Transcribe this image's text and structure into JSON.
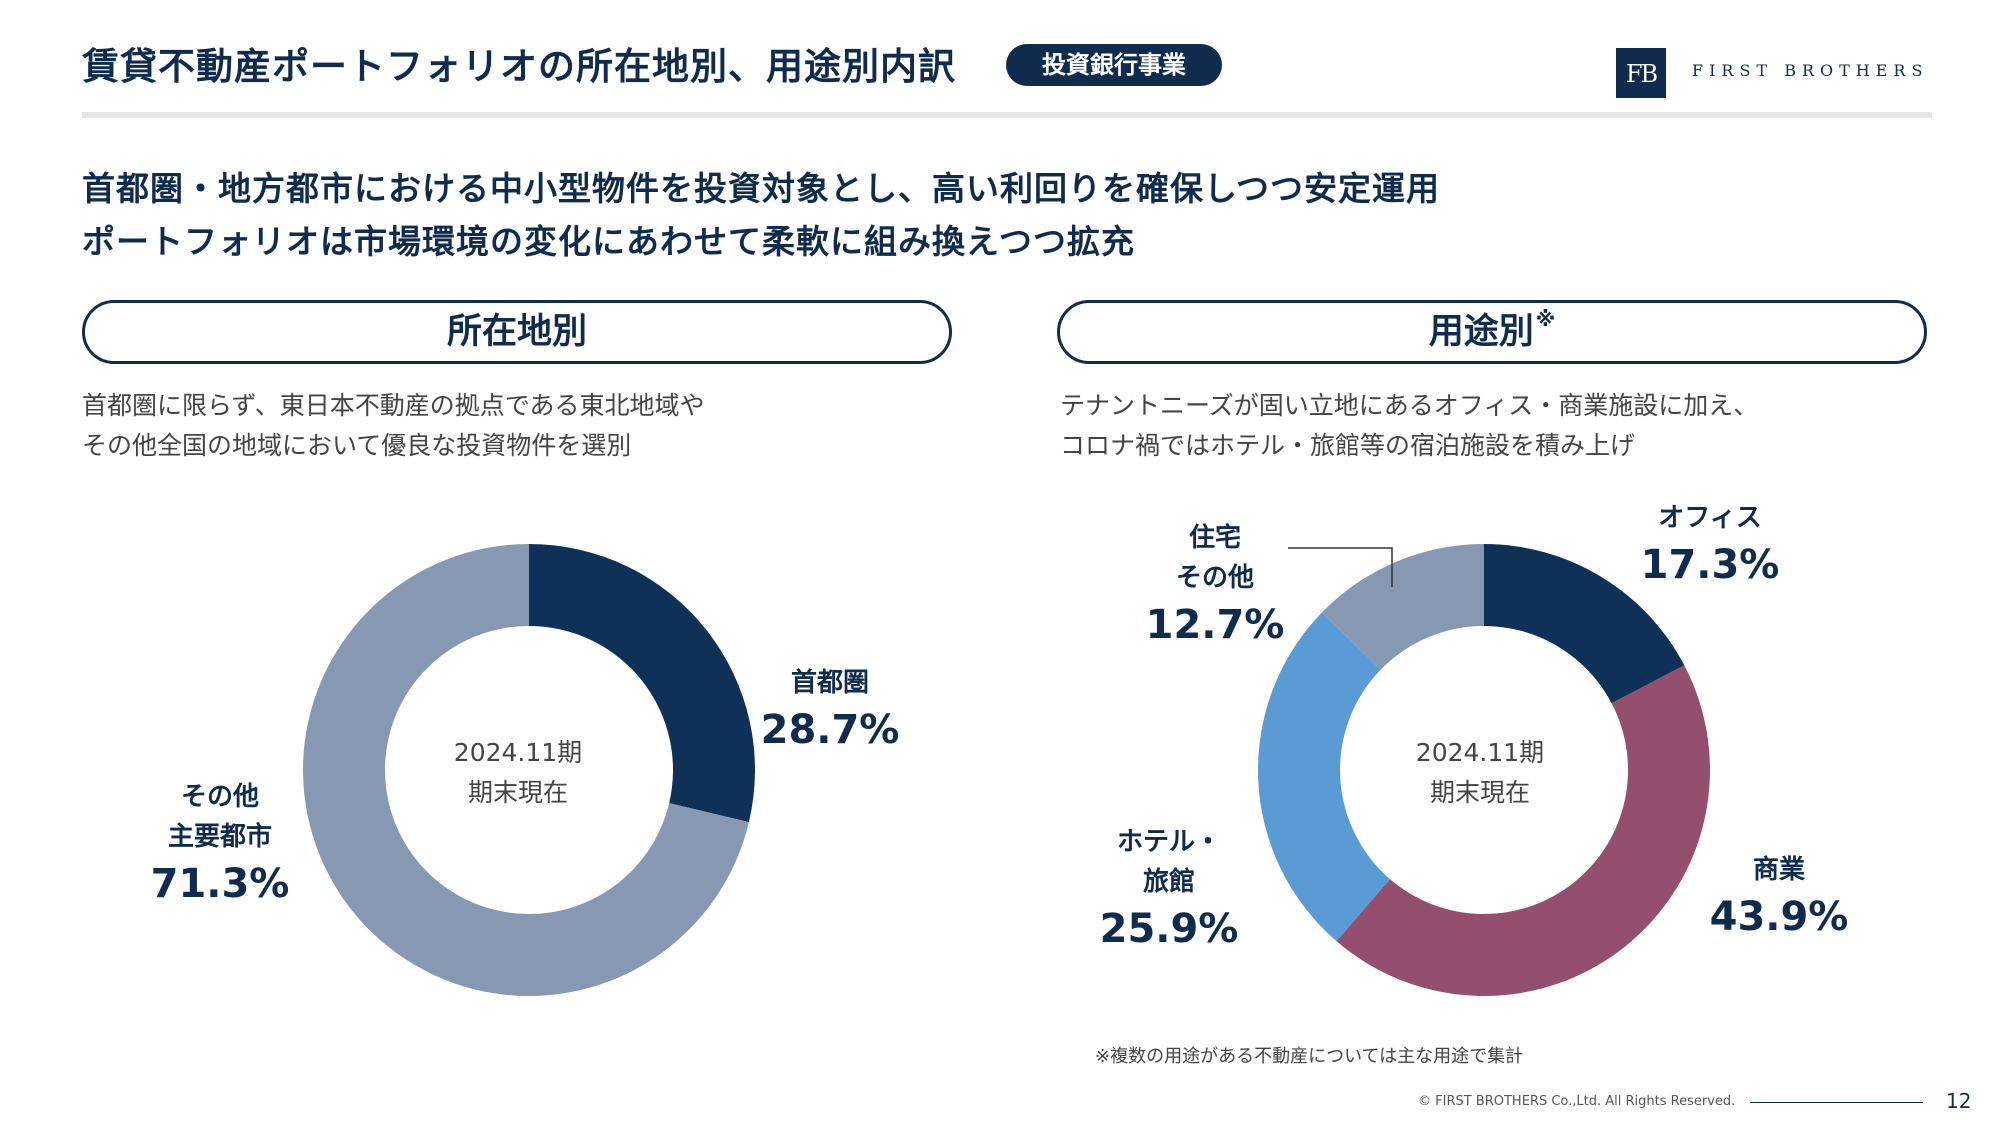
{
  "header": {
    "title": "賃貸不動産ポートフォリオの所在地別、用途別内訳",
    "badge": "投資銀行事業",
    "logo_mark": "FB",
    "logo_text": "FIRST BROTHERS"
  },
  "headline": {
    "line1": "首都圏・地方都市における中小型物件を投資対象とし、高い利回りを確保しつつ安定運用",
    "line2": "ポートフォリオは市場環境の変化にあわせて柔軟に組み換えつつ拡充"
  },
  "left_section": {
    "title": "所在地別",
    "desc_line1": "首都圏に限らず、東日本不動産の拠点である東北地域や",
    "desc_line2": "その他全国の地域において優良な投資物件を選別"
  },
  "right_section": {
    "title": "用途別",
    "title_mark": "※",
    "desc_line1": "テナントニーズが固い立地にあるオフィス・商業施設に加え、",
    "desc_line2": "コロナ禍ではホテル・旅館等の宿泊施設を積み上げ"
  },
  "chart_data": [
    {
      "type": "pie",
      "donut": true,
      "center_text": [
        "2024.11期",
        "期末現在"
      ],
      "categories": [
        "首都圏",
        "その他\n主要都市"
      ],
      "values": [
        28.7,
        71.3
      ],
      "value_labels": [
        "28.7%",
        "71.3%"
      ],
      "colors": [
        "#0f3157",
        "#8799b2"
      ]
    },
    {
      "type": "pie",
      "donut": true,
      "center_text": [
        "2024.11期",
        "期末現在"
      ],
      "categories": [
        "オフィス",
        "商業",
        "ホテル・\n旅館",
        "住宅\nその他"
      ],
      "values": [
        17.3,
        43.9,
        25.9,
        12.7
      ],
      "value_labels": [
        "17.3%",
        "43.9%",
        "25.9%",
        "12.7%"
      ],
      "colors": [
        "#0f3157",
        "#944f6e",
        "#5b9bd5",
        "#8799b2"
      ]
    }
  ],
  "footnote": "※複数の用途がある不動産については主な用途で集計",
  "footer": {
    "copyright": "© FIRST BROTHERS Co.,Ltd. All Rights Reserved.",
    "page_number": "12"
  }
}
